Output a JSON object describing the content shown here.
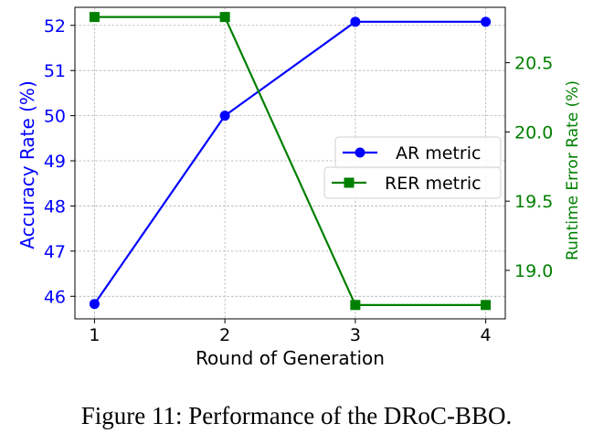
{
  "chart_data": {
    "type": "line",
    "xlabel": "Round of Generation",
    "x": [
      1,
      2,
      3,
      4
    ],
    "xticks": [
      "1",
      "2",
      "3",
      "4"
    ],
    "y_left": {
      "label": "Accuracy Rate (%)",
      "range": [
        45.5,
        52.4
      ],
      "ticks": [
        46,
        47,
        48,
        49,
        50,
        51,
        52
      ],
      "color": "#0000ff"
    },
    "y_right": {
      "label": "Runtime Error Rate (%)",
      "range": [
        18.65,
        20.9
      ],
      "ticks": [
        "19.0",
        "19.5",
        "20.0",
        "20.5"
      ],
      "color": "#008000"
    },
    "series": [
      {
        "name": "AR metric",
        "axis": "left",
        "marker": "circle",
        "color": "#0000ff",
        "values": [
          45.83,
          50.0,
          52.08,
          52.08
        ]
      },
      {
        "name": "RER metric",
        "axis": "right",
        "marker": "square",
        "color": "#008000",
        "values": [
          20.83,
          20.83,
          18.75,
          18.75
        ]
      }
    ],
    "grid": true,
    "legend_position": "center-right"
  },
  "caption": "Figure 11: Performance of the DRoC-BBO."
}
